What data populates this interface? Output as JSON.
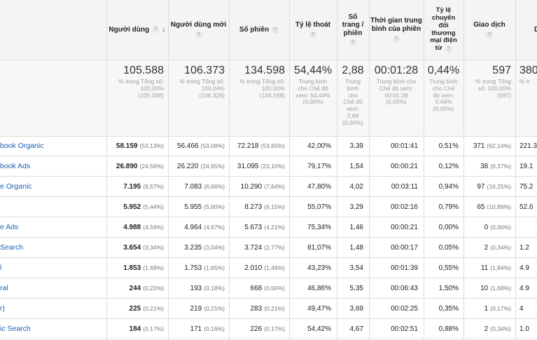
{
  "headers": {
    "users": "Người dùng",
    "new_users": "Người dùng mới",
    "sessions": "Số phiên",
    "bounce": "Tỷ lệ thoát",
    "pages": [
      "Số",
      "trang /",
      "phiên"
    ],
    "duration": [
      "Thời gian trung",
      "bình của phiên"
    ],
    "conversion": [
      "Tỷ lệ",
      "chuyển",
      "đổi",
      "thương",
      "mại điện",
      "tử"
    ],
    "transactions": "Giao dịch",
    "revenue_partial": "D"
  },
  "totals": {
    "users": {
      "value": "105.588",
      "sub": [
        "% trong Tổng số:",
        "100,00%",
        "(105.588)"
      ]
    },
    "new_users": {
      "value": "106.373",
      "sub": [
        "% trong Tổng số:",
        "100,04%",
        "(106.326)"
      ]
    },
    "sessions": {
      "value": "134.598",
      "sub": [
        "% trong Tổng số:",
        "100,00%",
        "(134.598)"
      ]
    },
    "bounce": {
      "value": "54,44%",
      "sub": [
        "Trung bình",
        "cho Chế độ",
        "xem: 54,44%",
        "(0,00%)"
      ]
    },
    "pages": {
      "value": "2,88",
      "sub": [
        "Trung",
        "bình",
        "cho",
        "Chế độ",
        "xem:",
        "2,88",
        "(0,00%)"
      ]
    },
    "duration": {
      "value": "00:01:28",
      "sub": [
        "Trung bình cho",
        "Chế độ xem:",
        "00:01:28",
        "(0,00%)"
      ]
    },
    "conversion": {
      "value": "0,44%",
      "sub": [
        "Trung bình",
        "cho Chế",
        "độ xem:",
        "0,44%",
        "(0,00%)"
      ]
    },
    "transactions": {
      "value": "597",
      "sub": [
        "% trong Tổng",
        "số: 100,00%",
        "(597)"
      ]
    },
    "revenue": {
      "value": "380",
      "sub": [
        "% tr"
      ]
    }
  },
  "rows": [
    {
      "source": "book Organic",
      "users": "58.159",
      "users_pct": "(53,13%)",
      "new_users": "56.466",
      "new_pct": "(53,08%)",
      "sessions": "72.218",
      "sessions_pct": "(53,65%)",
      "bounce": "42,00%",
      "pages": "3,39",
      "duration": "00:01:41",
      "conversion": "0,51%",
      "transactions": "371",
      "transactions_pct": "(62,14%)",
      "revenue": "221.3"
    },
    {
      "source": "book Ads",
      "users": "26.890",
      "users_pct": "(24,56%)",
      "new_users": "26.220",
      "new_pct": "(24,65%)",
      "sessions": "31.095",
      "sessions_pct": "(23,10%)",
      "bounce": "79,17%",
      "pages": "1,54",
      "duration": "00:00:21",
      "conversion": "0,12%",
      "transactions": "38",
      "transactions_pct": "(6,37%)",
      "revenue": "19.1"
    },
    {
      "source": "e Organic",
      "users": "7.195",
      "users_pct": "(6,57%)",
      "new_users": "7.083",
      "new_pct": "(6,66%)",
      "sessions": "10.290",
      "sessions_pct": "(7,64%)",
      "bounce": "47,80%",
      "pages": "4,02",
      "duration": "00:03:11",
      "conversion": "0,94%",
      "transactions": "97",
      "transactions_pct": "(16,25%)",
      "revenue": "75.2"
    },
    {
      "source": "",
      "users": "5.952",
      "users_pct": "(5,44%)",
      "new_users": "5.955",
      "new_pct": "(5,60%)",
      "sessions": "8.273",
      "sessions_pct": "(6,15%)",
      "bounce": "55,07%",
      "pages": "3,29",
      "duration": "00:02:16",
      "conversion": "0,79%",
      "transactions": "65",
      "transactions_pct": "(10,89%)",
      "revenue": "52.6"
    },
    {
      "source": "e Ads",
      "users": "4.988",
      "users_pct": "(4,56%)",
      "new_users": "4.964",
      "new_pct": "(4,67%)",
      "sessions": "5.673",
      "sessions_pct": "(4,21%)",
      "bounce": "75,34%",
      "pages": "1,46",
      "duration": "00:00:21",
      "conversion": "0,00%",
      "transactions": "0",
      "transactions_pct": "(0,00%)",
      "revenue": ""
    },
    {
      "source": "Search",
      "users": "3.654",
      "users_pct": "(3,34%)",
      "new_users": "3.235",
      "new_pct": "(3,04%)",
      "sessions": "3.724",
      "sessions_pct": "(2,77%)",
      "bounce": "81,07%",
      "pages": "1,48",
      "duration": "00:00:17",
      "conversion": "0,05%",
      "transactions": "2",
      "transactions_pct": "(0,34%)",
      "revenue": "1.2"
    },
    {
      "source": "l",
      "users": "1.853",
      "users_pct": "(1,69%)",
      "new_users": "1.753",
      "new_pct": "(1,65%)",
      "sessions": "2.010",
      "sessions_pct": "(1,49%)",
      "bounce": "43,23%",
      "pages": "3,54",
      "duration": "00:01:39",
      "conversion": "0,55%",
      "transactions": "11",
      "transactions_pct": "(1,84%)",
      "revenue": "4.9"
    },
    {
      "source": "ral",
      "users": "244",
      "users_pct": "(0,22%)",
      "new_users": "193",
      "new_pct": "(0,18%)",
      "sessions": "668",
      "sessions_pct": "(0,50%)",
      "bounce": "46,86%",
      "pages": "5,35",
      "duration": "00:06:43",
      "conversion": "1,50%",
      "transactions": "10",
      "transactions_pct": "(1,68%)",
      "revenue": "4.9"
    },
    {
      "source": "r)",
      "users": "225",
      "users_pct": "(0,21%)",
      "new_users": "219",
      "new_pct": "(0,21%)",
      "sessions": "283",
      "sessions_pct": "(0,21%)",
      "bounce": "49,47%",
      "pages": "3,69",
      "duration": "00:02:25",
      "conversion": "0,35%",
      "transactions": "1",
      "transactions_pct": "(0,17%)",
      "revenue": "4"
    },
    {
      "source": "ic Search",
      "users": "184",
      "users_pct": "(0,17%)",
      "new_users": "171",
      "new_pct": "(0,16%)",
      "sessions": "226",
      "sessions_pct": "(0,17%)",
      "bounce": "54,42%",
      "pages": "4,67",
      "duration": "00:02:51",
      "conversion": "0,88%",
      "transactions": "2",
      "transactions_pct": "(0,34%)",
      "revenue": "1.0"
    }
  ]
}
